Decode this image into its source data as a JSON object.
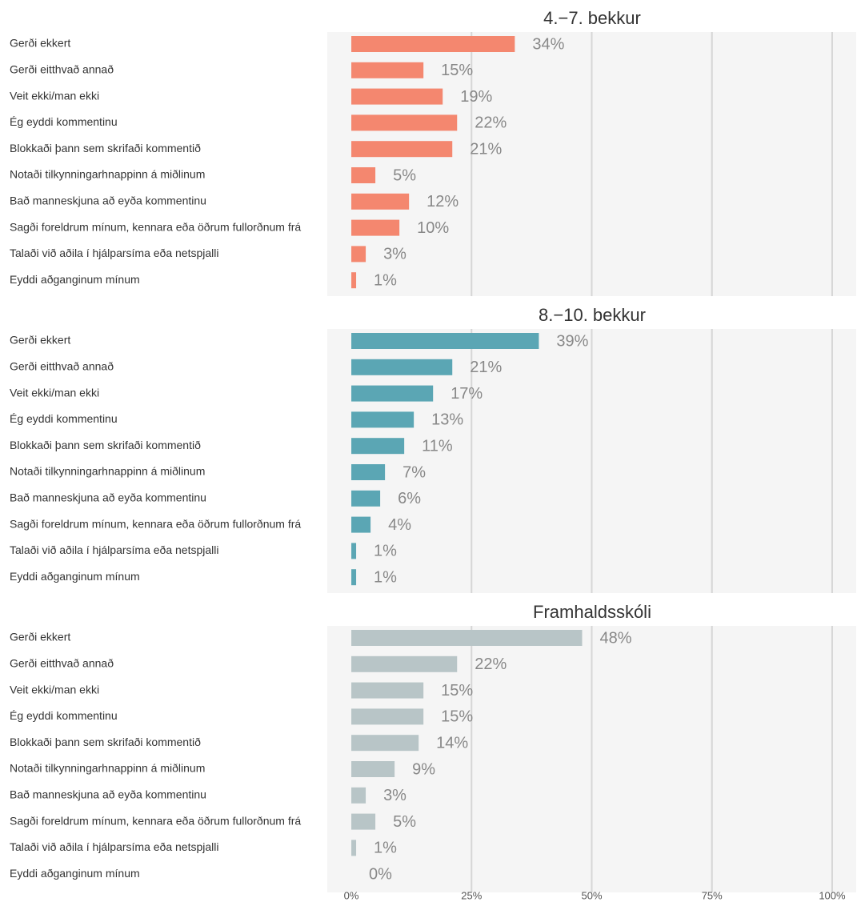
{
  "chart_data": [
    {
      "type": "bar",
      "orientation": "horizontal",
      "title": "4.−7. bekkur",
      "color": "#f4876f",
      "categories": [
        "Gerði ekkert",
        "Gerði eitthvað annað",
        "Veit ekki/man ekki",
        "Ég eyddi kommentinu",
        "Blokkaði þann sem skrifaði kommentið",
        "Notaði tilkynningarhnappinn á miðlinum",
        "Bað manneskjuna að eyða kommentinu",
        "Sagði foreldrum mínum, kennara eða öðrum fullorðnum frá",
        "Talaði við aðila í hjálparsíma eða netspjalli",
        "Eyddi aðganginum mínum"
      ],
      "values": [
        34,
        15,
        19,
        22,
        21,
        5,
        12,
        10,
        3,
        1
      ],
      "value_labels": [
        "34%",
        "15%",
        "19%",
        "22%",
        "21%",
        "5%",
        "12%",
        "10%",
        "3%",
        "1%"
      ],
      "xlim": [
        -5,
        105
      ],
      "xticks": [
        {
          "value": 0,
          "label": "0%"
        },
        {
          "value": 25,
          "label": "25%"
        },
        {
          "value": 50,
          "label": "50%"
        },
        {
          "value": 75,
          "label": "75%"
        },
        {
          "value": 100,
          "label": "100%"
        }
      ],
      "grid": true
    },
    {
      "type": "bar",
      "orientation": "horizontal",
      "title": "8.−10. bekkur",
      "color": "#5ba6b4",
      "categories": [
        "Gerði ekkert",
        "Gerði eitthvað annað",
        "Veit ekki/man ekki",
        "Ég eyddi kommentinu",
        "Blokkaði þann sem skrifaði kommentið",
        "Notaði tilkynningarhnappinn á miðlinum",
        "Bað manneskjuna að eyða kommentinu",
        "Sagði foreldrum mínum, kennara eða öðrum fullorðnum frá",
        "Talaði við aðila í hjálparsíma eða netspjalli",
        "Eyddi aðganginum mínum"
      ],
      "values": [
        39,
        21,
        17,
        13,
        11,
        7,
        6,
        4,
        1,
        1
      ],
      "value_labels": [
        "39%",
        "21%",
        "17%",
        "13%",
        "11%",
        "7%",
        "6%",
        "4%",
        "1%",
        "1%"
      ],
      "xlim": [
        -5,
        105
      ],
      "xticks": [
        {
          "value": 0,
          "label": "0%"
        },
        {
          "value": 25,
          "label": "25%"
        },
        {
          "value": 50,
          "label": "50%"
        },
        {
          "value": 75,
          "label": "75%"
        },
        {
          "value": 100,
          "label": "100%"
        }
      ],
      "grid": true
    },
    {
      "type": "bar",
      "orientation": "horizontal",
      "title": "Framhaldsskóli",
      "color": "#b8c5c7",
      "categories": [
        "Gerði ekkert",
        "Gerði eitthvað annað",
        "Veit ekki/man ekki",
        "Ég eyddi kommentinu",
        "Blokkaði þann sem skrifaði kommentið",
        "Notaði tilkynningarhnappinn á miðlinum",
        "Bað manneskjuna að eyða kommentinu",
        "Sagði foreldrum mínum, kennara eða öðrum fullorðnum frá",
        "Talaði við aðila í hjálparsíma eða netspjalli",
        "Eyddi aðganginum mínum"
      ],
      "values": [
        48,
        22,
        15,
        15,
        14,
        9,
        3,
        5,
        1,
        0
      ],
      "value_labels": [
        "48%",
        "22%",
        "15%",
        "15%",
        "14%",
        "9%",
        "3%",
        "5%",
        "1%",
        "0%"
      ],
      "xlim": [
        -5,
        105
      ],
      "xticks": [
        {
          "value": 0,
          "label": "0%"
        },
        {
          "value": 25,
          "label": "25%"
        },
        {
          "value": 50,
          "label": "50%"
        },
        {
          "value": 75,
          "label": "75%"
        },
        {
          "value": 100,
          "label": "100%"
        }
      ],
      "grid": true
    }
  ]
}
